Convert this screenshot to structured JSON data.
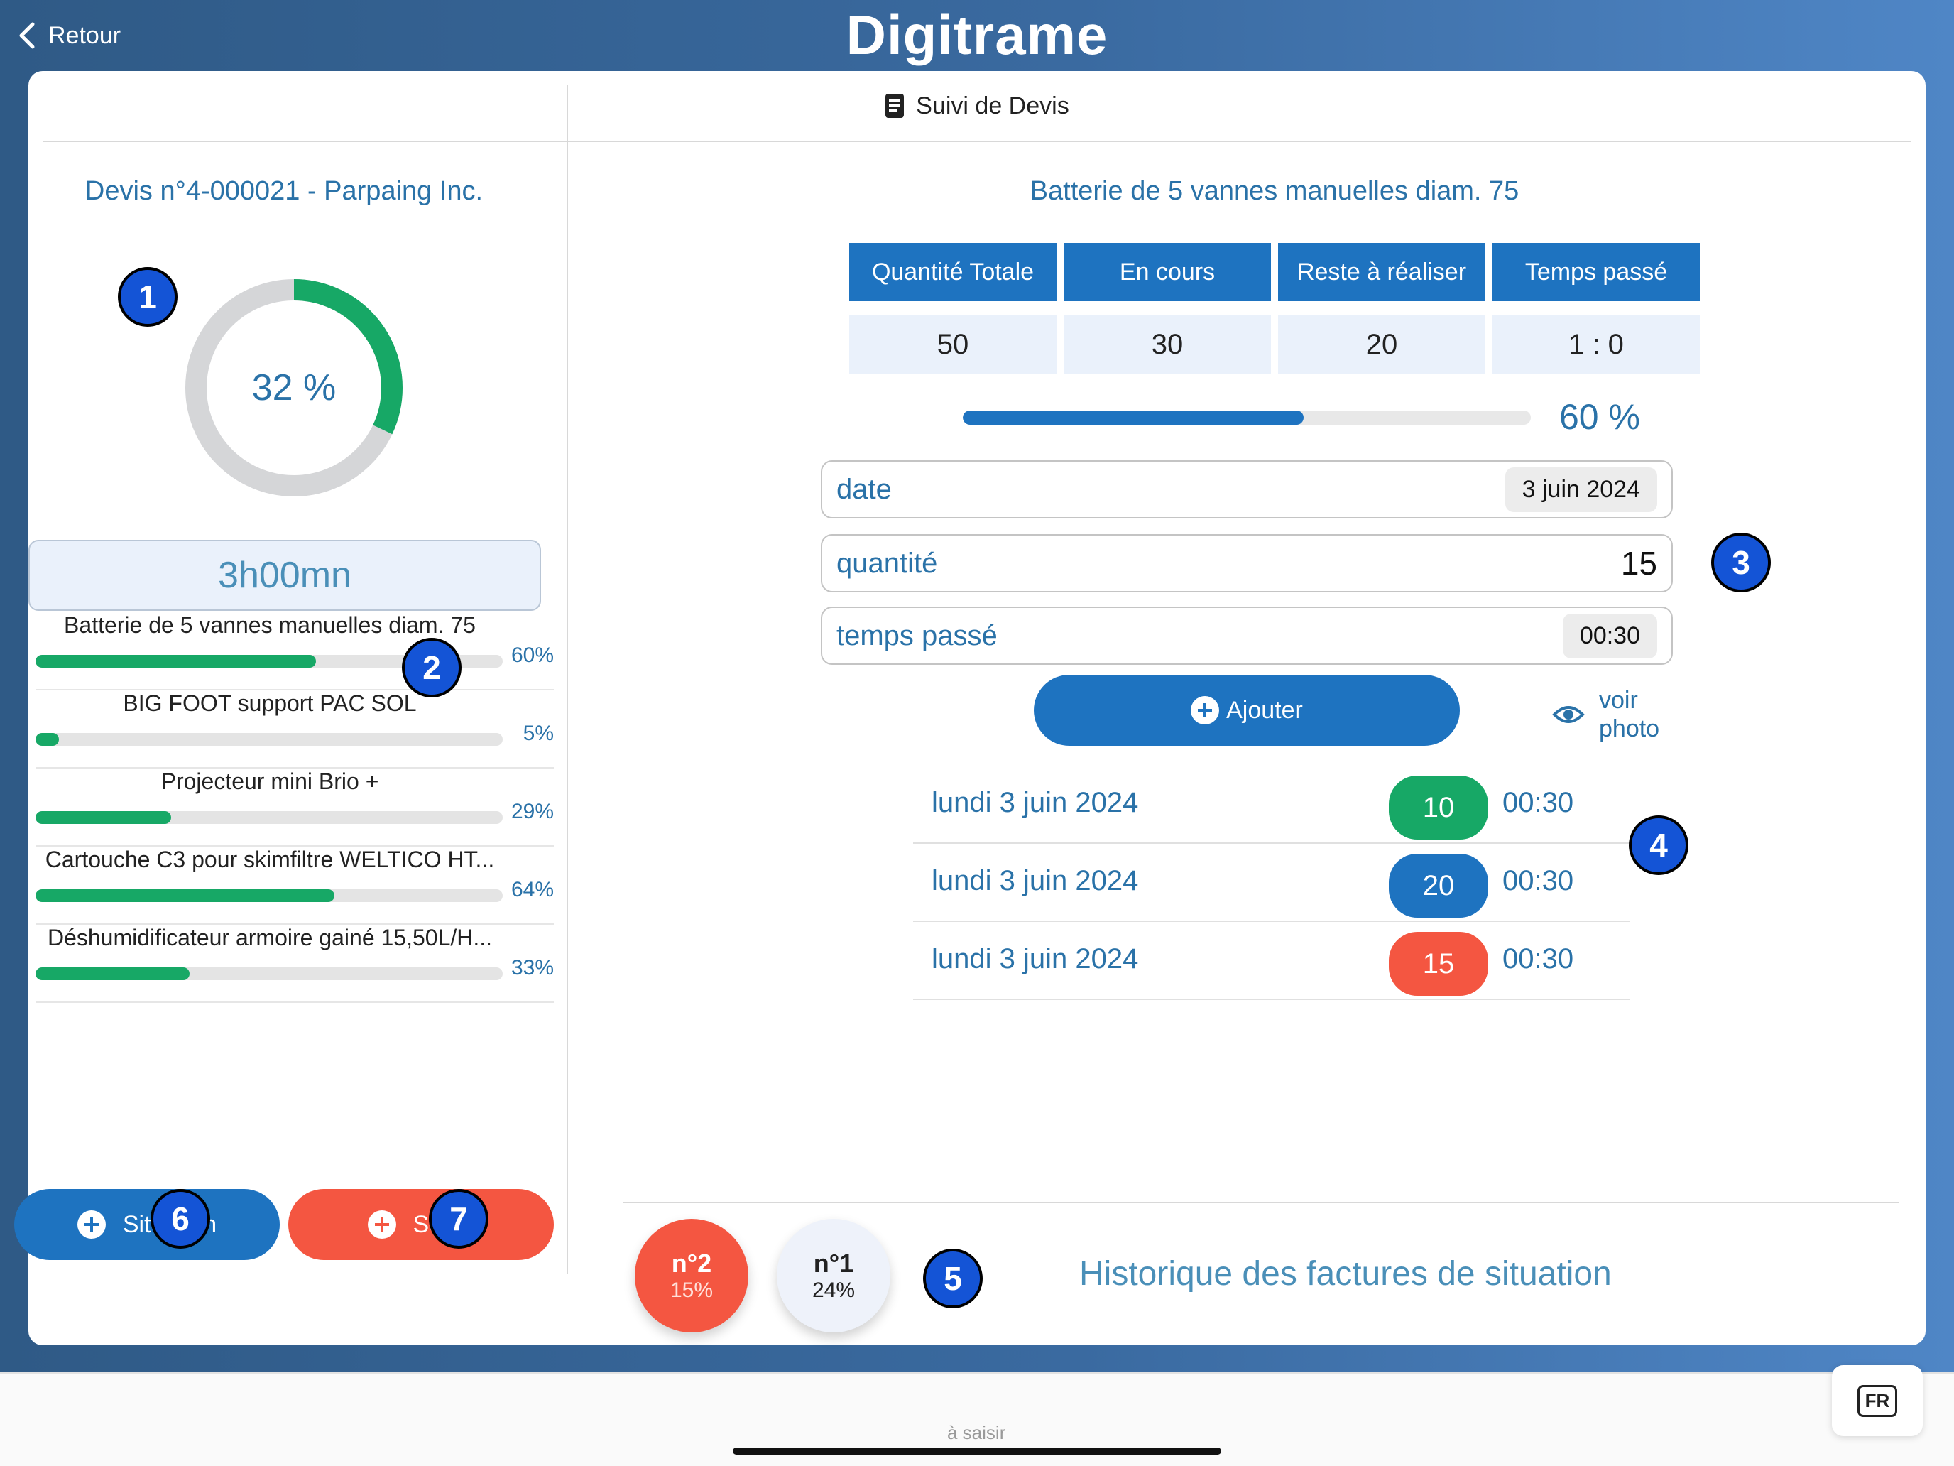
{
  "topbar": {
    "back_label": "Retour",
    "logo": "Digitrame"
  },
  "header": {
    "title": "Suivi de Devis"
  },
  "left": {
    "devis_title": "Devis n°4-000021 - Parpaing Inc.",
    "donut": {
      "percent": 32,
      "label": "32 %"
    },
    "time_total": "3h00mn",
    "items": [
      {
        "name": "Batterie de 5 vannes manuelles diam. 75",
        "percent": 60,
        "pct_label": "60%"
      },
      {
        "name": "BIG FOOT support PAC SOL",
        "percent": 5,
        "pct_label": "5%"
      },
      {
        "name": "Projecteur mini Brio +",
        "percent": 29,
        "pct_label": "29%"
      },
      {
        "name": "Cartouche C3 pour skimfiltre WELTICO HT...",
        "percent": 64,
        "pct_label": "64%"
      },
      {
        "name": "Déshumidificateur armoire gainé 15,50L/H...",
        "percent": 33,
        "pct_label": "33%"
      }
    ],
    "buttons": {
      "situation": "Situation",
      "solde": "Solde"
    }
  },
  "right": {
    "article_title": "Batterie de 5 vannes manuelles diam. 75",
    "stats": {
      "headers": [
        "Quantité Totale",
        "En cours",
        "Reste à réaliser",
        "Temps passé"
      ],
      "values": [
        "50",
        "30",
        "20",
        "1 : 0"
      ]
    },
    "progress": {
      "percent": 60,
      "label": "60 %"
    },
    "fields": {
      "date": {
        "label": "date",
        "value": "3 juin 2024"
      },
      "quantite": {
        "label": "quantité",
        "value": "15"
      },
      "temps": {
        "label": "temps passé",
        "value": "00:30"
      }
    },
    "ajouter_label": "Ajouter",
    "voir_photo": {
      "line1": "voir",
      "line2": "photo"
    },
    "history": [
      {
        "date": "lundi 3 juin 2024",
        "qty": "10",
        "time": "00:30",
        "color": "#17a866"
      },
      {
        "date": "lundi 3 juin 2024",
        "qty": "20",
        "time": "00:30",
        "color": "#1e73c0"
      },
      {
        "date": "lundi 3 juin 2024",
        "qty": "15",
        "time": "00:30",
        "color": "#f45641"
      }
    ],
    "invoices": [
      {
        "num": "n°2",
        "pct": "15%",
        "bg": "#f45641"
      },
      {
        "num": "n°1",
        "pct": "24%",
        "bg": "#eef2fa"
      }
    ],
    "invoices_label": "Historique des factures de situation"
  },
  "markers": [
    "1",
    "2",
    "3",
    "4",
    "5",
    "6",
    "7"
  ],
  "bottom": {
    "hint": "à saisir",
    "lang": "FR"
  },
  "colors": {
    "accent": "#1e73c0",
    "green": "#17a866",
    "red": "#f45641",
    "text_blue": "#2a72a8"
  }
}
